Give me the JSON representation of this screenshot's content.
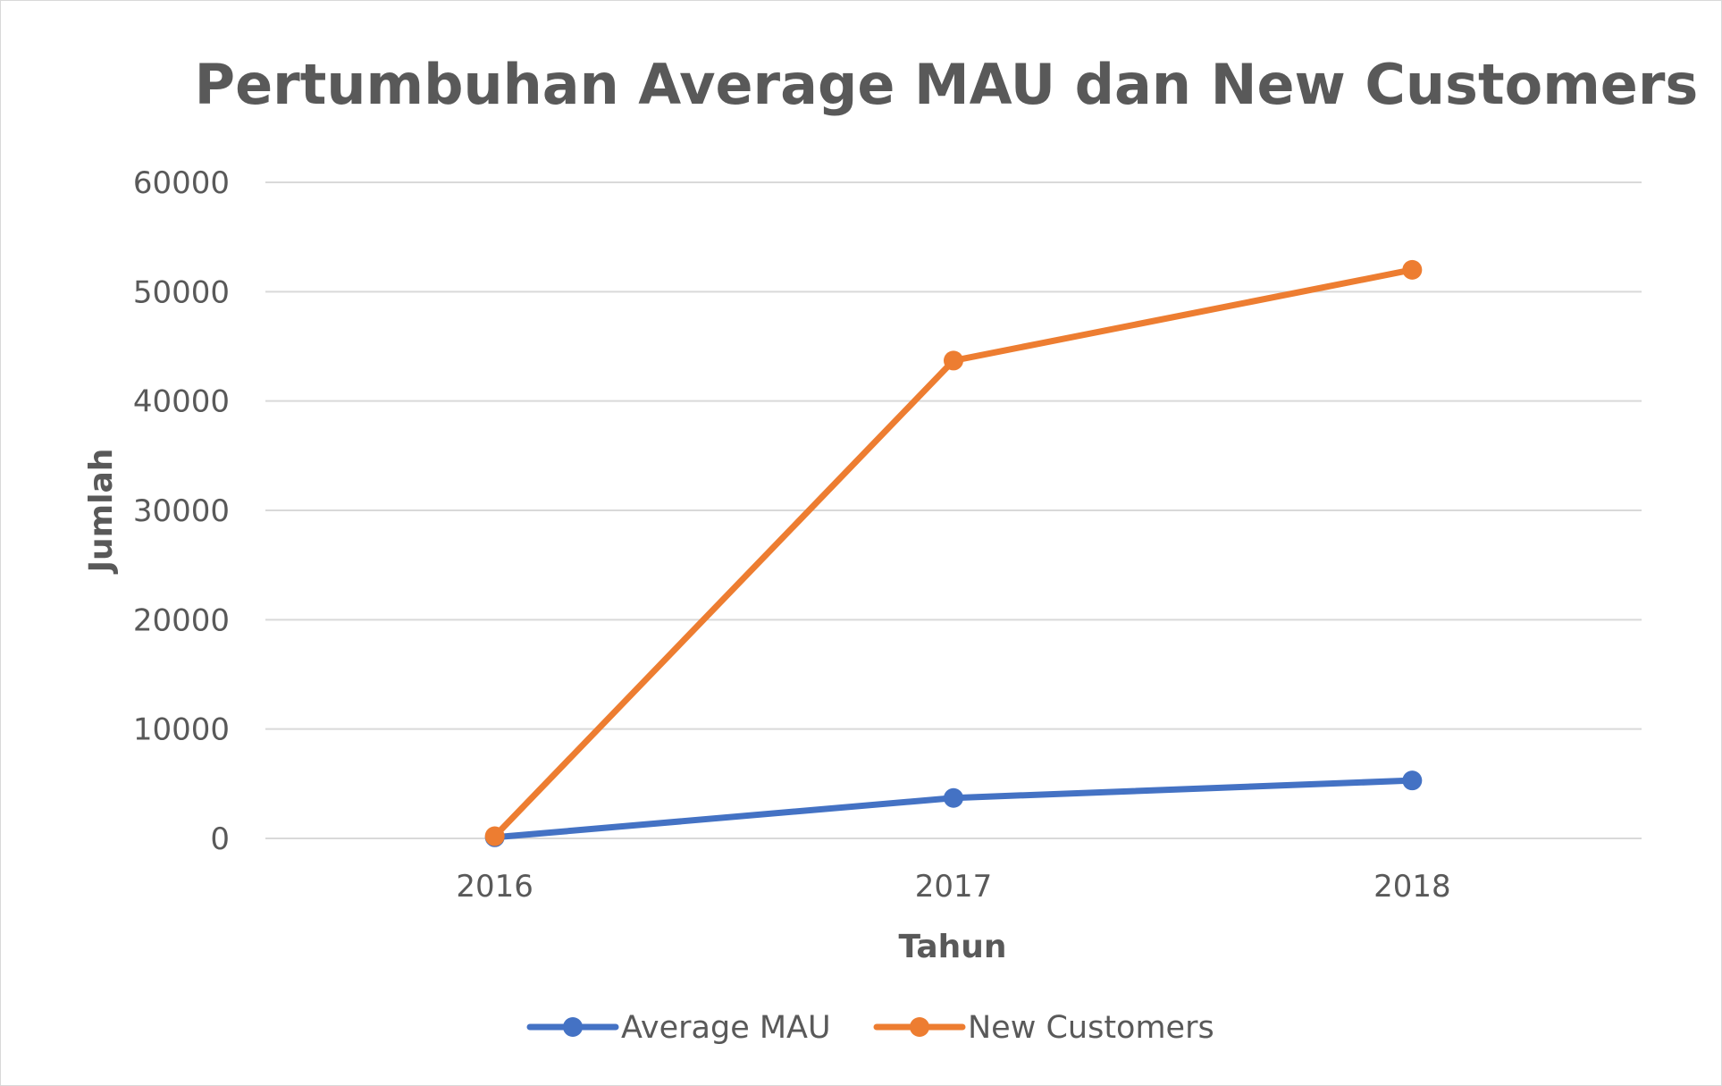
{
  "chart_data": {
    "type": "line",
    "title": "Pertumbuhan Average MAU dan New Customers",
    "xlabel": "Tahun",
    "ylabel": "Jumlah",
    "categories": [
      "2016",
      "2017",
      "2018"
    ],
    "ylim": [
      0,
      60000
    ],
    "yticks": [
      0,
      10000,
      20000,
      30000,
      40000,
      50000,
      60000
    ],
    "ytick_labels": [
      "0",
      "10000",
      "20000",
      "30000",
      "40000",
      "50000",
      "60000"
    ],
    "grid": true,
    "legend_position": "bottom",
    "series": [
      {
        "name": "Average MAU",
        "color": "#4472c4",
        "values": [
          100,
          3700,
          5300
        ]
      },
      {
        "name": "New Customers",
        "color": "#ed7d31",
        "values": [
          200,
          43700,
          52000
        ]
      }
    ]
  }
}
